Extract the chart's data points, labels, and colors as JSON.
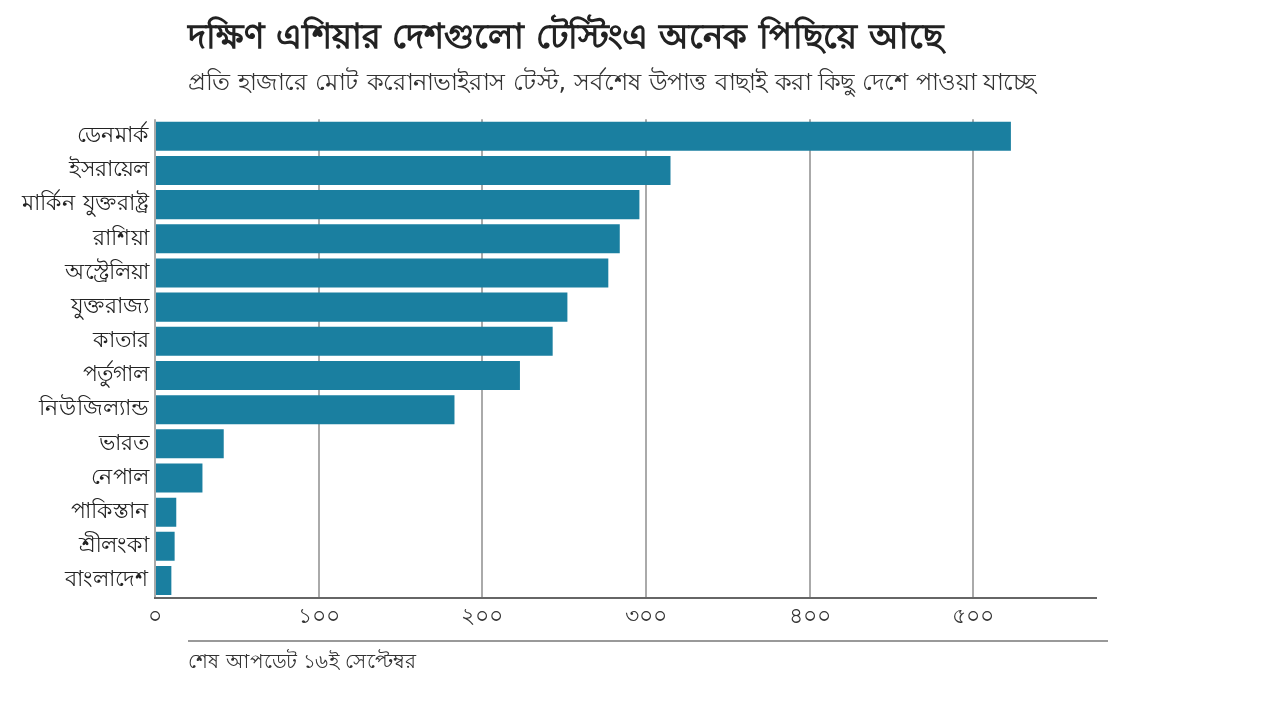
{
  "chart_data": {
    "type": "bar",
    "orientation": "horizontal",
    "title": "দক্ষিণ এশিয়ার দেশগুলো টেস্টিংএ অনেক পিছিয়ে আছে",
    "subtitle": "প্রতি হাজারে মোট করোনাভাইরাস টেস্ট, সর্বশেষ উপাত্ত বাছাই করা কিছু দেশে পাওয়া যাচ্ছে",
    "categories": [
      "ডেনমার্ক",
      "ইসরায়েল",
      "মার্কিন যুক্তরাষ্ট্র",
      "রাশিয়া",
      "অস্ট্রেলিয়া",
      "যুক্তরাজ্য",
      "কাতার",
      "পর্তুগাল",
      "নিউজিল্যান্ড",
      "ভারত",
      "নেপাল",
      "পাকিস্তান",
      "শ্রীলংকা",
      "বাংলাদেশ"
    ],
    "values": [
      523,
      315,
      296,
      284,
      277,
      252,
      243,
      223,
      183,
      42,
      29,
      13,
      12,
      10
    ],
    "color": "#1a7fa0",
    "xlim": [
      0,
      575
    ],
    "xticks": [
      {
        "value": 0,
        "label": "০"
      },
      {
        "value": 100,
        "label": "১০০"
      },
      {
        "value": 200,
        "label": "২০০"
      },
      {
        "value": 300,
        "label": "৩০০"
      },
      {
        "value": 400,
        "label": "৪০০"
      },
      {
        "value": 500,
        "label": "৫০০"
      }
    ],
    "grid": "x",
    "legend": false,
    "annotations": [
      "শেষ আপডেট ১৬ই সেপ্টেম্বর"
    ]
  }
}
